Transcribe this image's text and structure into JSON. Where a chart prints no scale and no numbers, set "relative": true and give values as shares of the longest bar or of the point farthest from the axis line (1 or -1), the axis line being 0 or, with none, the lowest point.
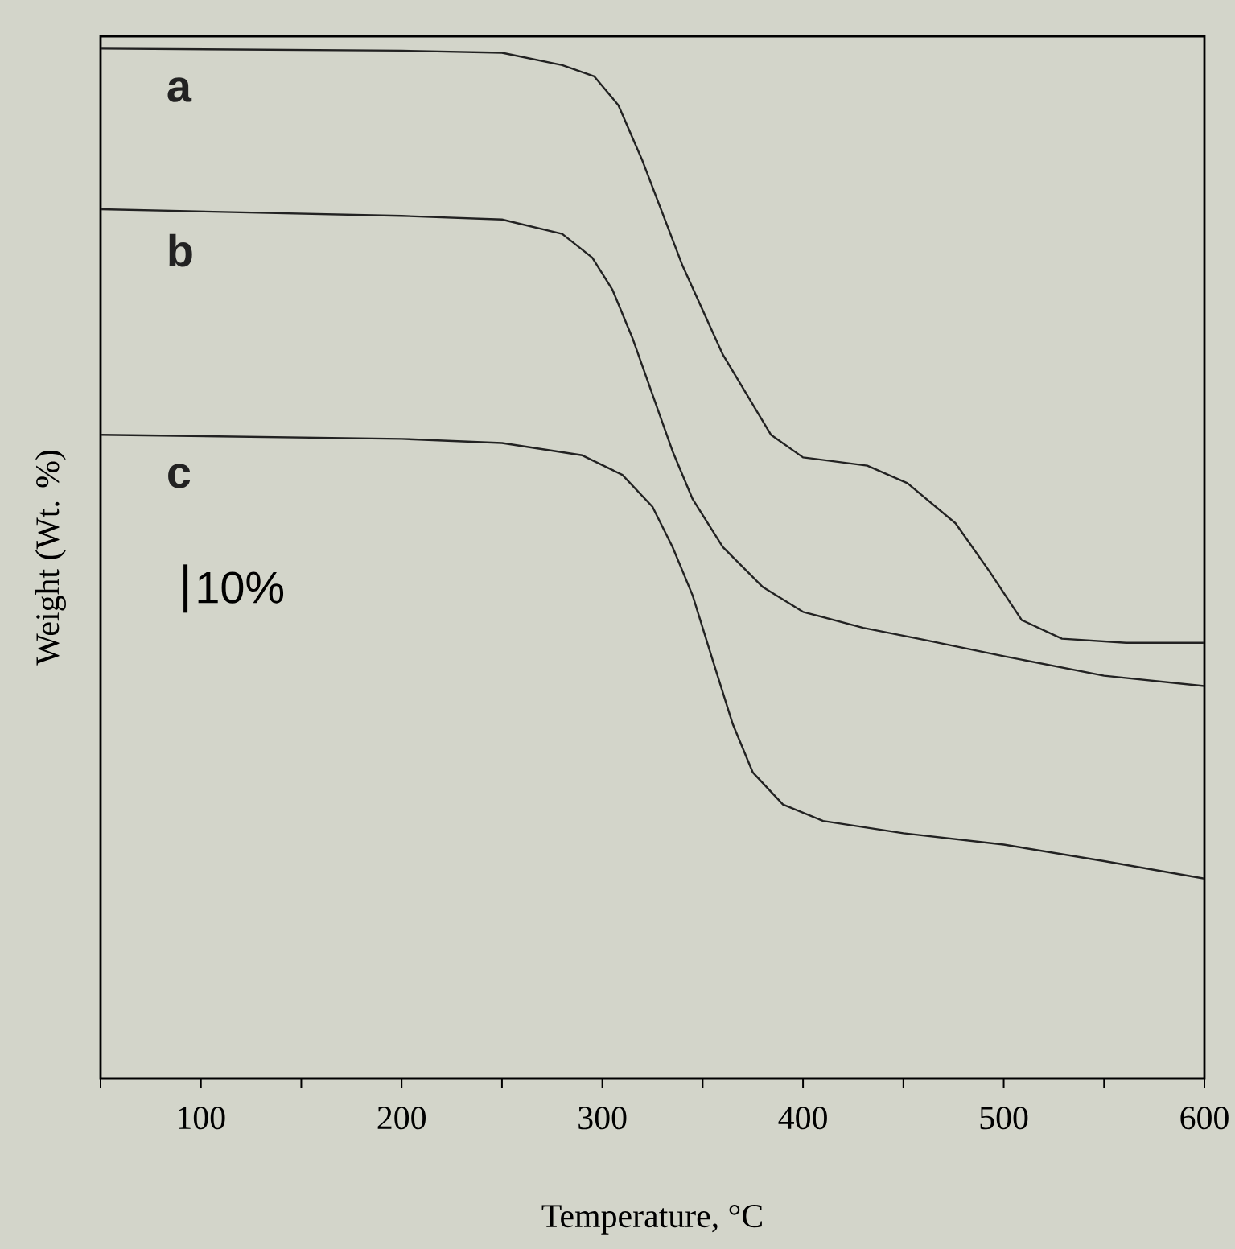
{
  "chart_data": {
    "type": "line",
    "xlabel": "Temperature, °C",
    "ylabel": "Weight (Wt. %)",
    "relative": true,
    "marker": "none",
    "xlim": [
      50,
      600
    ],
    "xticks": [
      {
        "value": 50,
        "label": null
      },
      100,
      {
        "value": 150,
        "label": null
      },
      200,
      {
        "value": 250,
        "label": null
      },
      300,
      {
        "value": 350,
        "label": null
      },
      400,
      {
        "value": 450,
        "label": null
      },
      500,
      {
        "value": 550,
        "label": null
      },
      600
    ],
    "annotations": [
      "10%"
    ],
    "series": [
      {
        "name": "a",
        "color": "#222222",
        "x": [
          50,
          200,
          250,
          280,
          296,
          308,
          320,
          340,
          360,
          384,
          400,
          432,
          452,
          476,
          493,
          509,
          529,
          561,
          600
        ],
        "values": [
          1.0,
          0.998,
          0.996,
          0.984,
          0.973,
          0.945,
          0.891,
          0.789,
          0.703,
          0.625,
          0.603,
          0.595,
          0.578,
          0.539,
          0.492,
          0.445,
          0.427,
          0.423,
          0.423
        ]
      },
      {
        "name": "b",
        "color": "#222222",
        "x": [
          50,
          200,
          250,
          280,
          295,
          305,
          315,
          325,
          335,
          345,
          360,
          380,
          400,
          430,
          460,
          500,
          550,
          600
        ],
        "values": [
          0.844,
          0.8375,
          0.834,
          0.82,
          0.797,
          0.766,
          0.719,
          0.664,
          0.609,
          0.5625,
          0.516,
          0.477,
          0.453,
          0.4375,
          0.426,
          0.41,
          0.391,
          0.381
        ]
      },
      {
        "name": "c",
        "color": "#222222",
        "x": [
          50,
          200,
          250,
          290,
          310,
          325,
          335,
          345,
          355,
          365,
          375,
          390,
          410,
          450,
          500,
          550,
          600
        ],
        "values": [
          0.625,
          0.621,
          0.617,
          0.605,
          0.586,
          0.555,
          0.516,
          0.469,
          0.406,
          0.344,
          0.297,
          0.266,
          0.25,
          0.238,
          0.227,
          0.211,
          0.194
        ]
      }
    ]
  }
}
